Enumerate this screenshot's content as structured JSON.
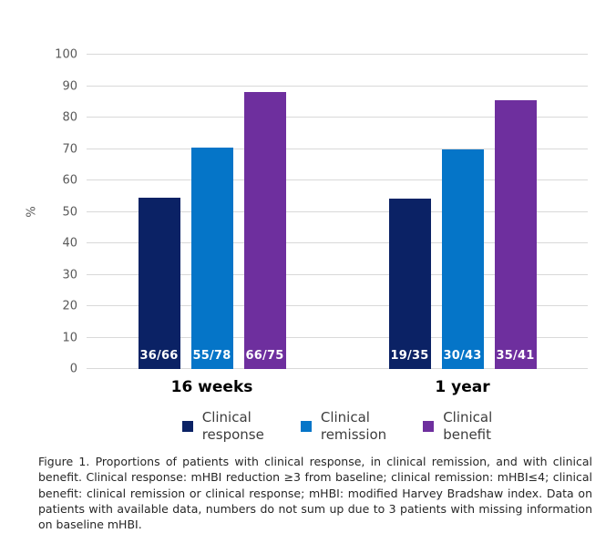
{
  "chart_data": {
    "type": "bar",
    "title": "",
    "categories": [
      "16 weeks",
      "1 year"
    ],
    "series": [
      {
        "name": "Clinical response",
        "color": "#0b2265",
        "values": [
          54.5,
          54.3
        ],
        "bar_labels": [
          "36/66",
          "19/35"
        ]
      },
      {
        "name": "Clinical remission",
        "color": "#0575c8",
        "values": [
          70.5,
          69.8
        ],
        "bar_labels": [
          "55/78",
          "30/43"
        ]
      },
      {
        "name": "Clinical benefit",
        "color": "#6e2f9e",
        "values": [
          88.0,
          85.4
        ],
        "bar_labels": [
          "66/75",
          "35/41"
        ]
      }
    ],
    "xlabel": "",
    "ylabel": "%",
    "ylim": [
      0,
      100
    ],
    "yticks": [
      0,
      10,
      20,
      30,
      40,
      50,
      60,
      70,
      80,
      90,
      100
    ],
    "grid": true,
    "legend_position": "bottom"
  },
  "caption": {
    "text": "Figure 1. Proportions of patients with clinical response, in clinical remission, and with clinical benefit. Clinical response: mHBI reduction ≥3 from baseline; clinical remission: mHBI≤4; clinical benefit: clinical remission or clinical response; mHBI: modified Harvey Bradshaw index. Data on patients with available data, numbers do not sum up due to 3 patients with missing information on baseline mHBI."
  },
  "colors": {
    "gridline": "#d9d9d9",
    "tick_label": "#595959",
    "bar_value_label": "#ffffff",
    "category_label": "#000000",
    "legend_text": "#3d3d3d",
    "caption_text": "#262626",
    "background": "#ffffff"
  }
}
